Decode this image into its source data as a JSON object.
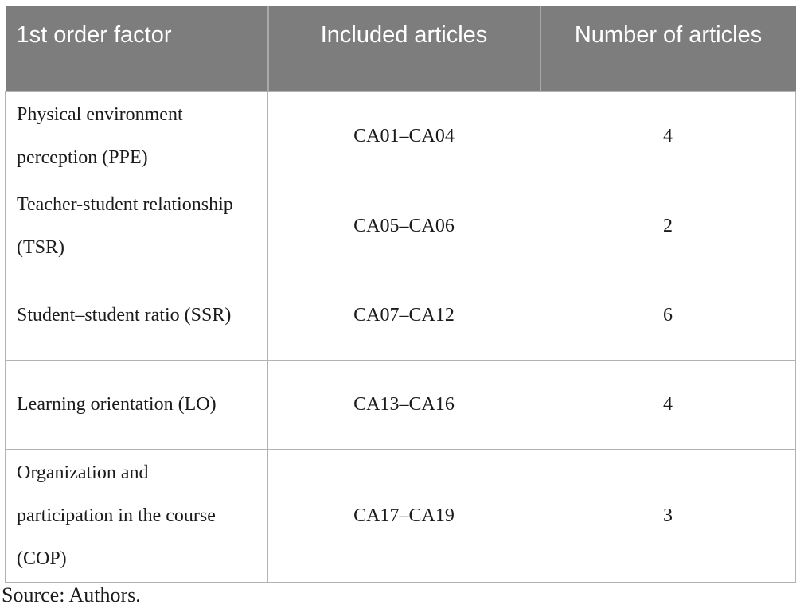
{
  "table": {
    "columns": [
      "1st order factor",
      "Included articles",
      "Number of articles"
    ],
    "rows": [
      {
        "factor": "Physical environment perception (PPE)",
        "articles": "CA01–CA04",
        "count": "4"
      },
      {
        "factor": "Teacher-student relationship (TSR)",
        "articles": "CA05–CA06",
        "count": "2"
      },
      {
        "factor": "Student–student ratio (SSR)",
        "articles": "CA07–CA12",
        "count": "6"
      },
      {
        "factor": "Learning orientation (LO)",
        "articles": "CA13–CA16",
        "count": "4"
      },
      {
        "factor": "Organization and participation in the course (COP)",
        "articles": "CA17–CA19",
        "count": "3"
      }
    ]
  },
  "footer": {
    "source": "Source: Authors."
  },
  "colors": {
    "header_bg": "#7d7d7d",
    "header_text": "#ffffff",
    "header_divider": "#a9a9a9",
    "body_border": "#b3b3b3",
    "body_text": "#1b1b1b"
  }
}
